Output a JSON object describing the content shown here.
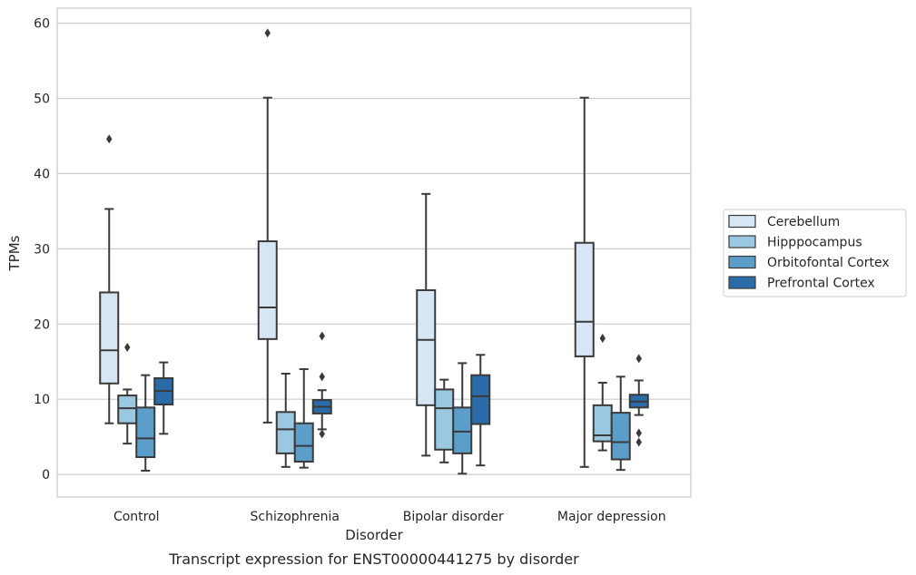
{
  "chart_data": {
    "type": "box",
    "caption": "Transcript expression for ENST00000441275 by disorder",
    "xlabel": "Disorder",
    "ylabel": "TPMs",
    "ylim": [
      -3,
      62
    ],
    "yticks": [
      0,
      10,
      20,
      30,
      40,
      50,
      60
    ],
    "grid": true,
    "legend_position": "right",
    "categories": [
      "Control",
      "Schizophrenia",
      "Bipolar disorder",
      "Major depression"
    ],
    "series": [
      {
        "name": "Cerebellum",
        "color": "#d6e6f4",
        "boxes": [
          {
            "whislo": 6.8,
            "q1": 12.1,
            "med": 16.5,
            "q3": 24.2,
            "whishi": 35.3,
            "fliers": [
              44.6
            ]
          },
          {
            "whislo": 6.9,
            "q1": 18.0,
            "med": 22.2,
            "q3": 31.0,
            "whishi": 50.1,
            "fliers": [
              58.7
            ]
          },
          {
            "whislo": 2.5,
            "q1": 9.2,
            "med": 17.9,
            "q3": 24.5,
            "whishi": 37.3,
            "fliers": []
          },
          {
            "whislo": 1.0,
            "q1": 15.7,
            "med": 20.3,
            "q3": 30.8,
            "whishi": 50.1,
            "fliers": []
          }
        ]
      },
      {
        "name": "Hipppocampus",
        "color": "#9ac8e0",
        "boxes": [
          {
            "whislo": 4.1,
            "q1": 6.8,
            "med": 8.8,
            "q3": 10.5,
            "whishi": 11.3,
            "fliers": [
              16.9
            ]
          },
          {
            "whislo": 1.0,
            "q1": 2.8,
            "med": 6.0,
            "q3": 8.3,
            "whishi": 13.4,
            "fliers": []
          },
          {
            "whislo": 1.6,
            "q1": 3.3,
            "med": 8.8,
            "q3": 11.3,
            "whishi": 12.6,
            "fliers": []
          },
          {
            "whislo": 3.2,
            "q1": 4.4,
            "med": 5.2,
            "q3": 9.2,
            "whishi": 12.2,
            "fliers": [
              18.1
            ]
          }
        ]
      },
      {
        "name": "Orbitofontal Cortex",
        "color": "#5a9ec9",
        "boxes": [
          {
            "whislo": 0.5,
            "q1": 2.3,
            "med": 4.8,
            "q3": 8.9,
            "whishi": 13.2,
            "fliers": []
          },
          {
            "whislo": 0.9,
            "q1": 1.7,
            "med": 3.8,
            "q3": 6.8,
            "whishi": 14.0,
            "fliers": []
          },
          {
            "whislo": 0.1,
            "q1": 2.8,
            "med": 5.7,
            "q3": 8.9,
            "whishi": 14.8,
            "fliers": []
          },
          {
            "whislo": 0.6,
            "q1": 2.0,
            "med": 4.3,
            "q3": 8.2,
            "whishi": 13.0,
            "fliers": []
          }
        ]
      },
      {
        "name": "Prefrontal Cortex",
        "color": "#2b6ca8",
        "boxes": [
          {
            "whislo": 5.4,
            "q1": 9.3,
            "med": 11.1,
            "q3": 12.8,
            "whishi": 14.9,
            "fliers": []
          },
          {
            "whislo": 6.0,
            "q1": 8.1,
            "med": 9.0,
            "q3": 9.9,
            "whishi": 11.2,
            "fliers": [
              18.4,
              13.0,
              5.4
            ]
          },
          {
            "whislo": 1.2,
            "q1": 6.7,
            "med": 10.4,
            "q3": 13.2,
            "whishi": 15.9,
            "fliers": []
          },
          {
            "whislo": 7.9,
            "q1": 8.9,
            "med": 9.7,
            "q3": 10.6,
            "whishi": 12.5,
            "fliers": [
              15.4,
              5.5,
              4.3
            ]
          }
        ]
      }
    ]
  }
}
